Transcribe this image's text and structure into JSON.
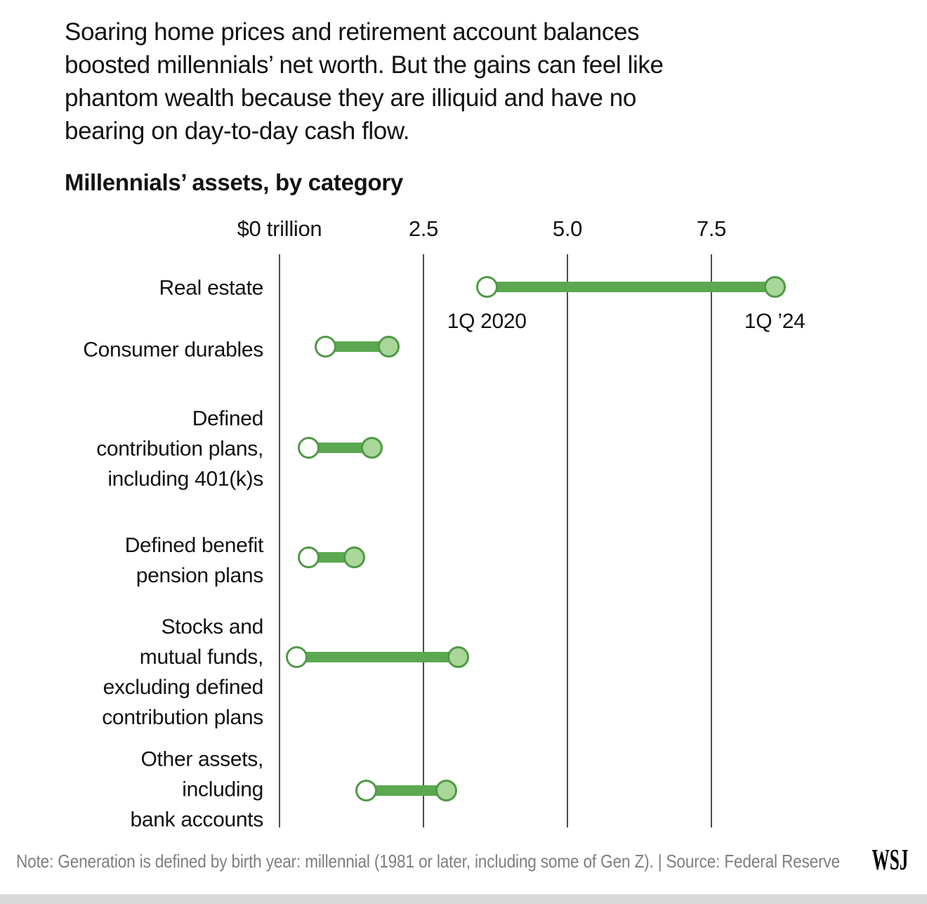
{
  "page": {
    "background": "#ffffff",
    "text_color": "#121212",
    "note_color": "#7f7f7f",
    "divider_color": "#d9d9d9"
  },
  "intro": {
    "lines": [
      "Soaring home prices and retirement account balances",
      "boosted millennials’ net worth. But the gains can feel like",
      "phantom wealth because they are illiquid and have no",
      "bearing on day-to-day cash flow."
    ]
  },
  "chart_data": {
    "type": "dumbbell",
    "title": "Millennials’ assets, by category",
    "unit": "trillions of U.S. dollars",
    "x_axis": {
      "tick_values": [
        0,
        2.5,
        5.0,
        7.5
      ],
      "tick_labels": [
        "$0 trillion",
        "2.5",
        "5.0",
        "7.5"
      ],
      "range": [
        0,
        9.3
      ],
      "grid": true
    },
    "point_labels": {
      "start": "1Q 2020",
      "end": "1Q ’24"
    },
    "categories": [
      "Real estate",
      "Consumer durables",
      "Defined\ncontribution plans,\nincluding 401(k)s",
      "Defined benefit\npension plans",
      "Stocks and\nmutual funds,\nexcluding defined\ncontribution plans",
      "Other assets,\nincluding\nbank accounts"
    ],
    "series": [
      {
        "name": "1Q 2020",
        "values": [
          3.6,
          0.8,
          0.5,
          0.5,
          0.3,
          1.5
        ]
      },
      {
        "name": "1Q ’24",
        "values": [
          8.6,
          1.9,
          1.6,
          1.3,
          3.1,
          2.9
        ]
      }
    ],
    "legend_position": "inline-on-first-row",
    "colors": {
      "line": "#5ca851",
      "marker_border": "#4f9a44",
      "end_fill": "#a9d699",
      "start_fill": "#ffffff"
    }
  },
  "footer": {
    "note": "Note: Generation is defined by birth year: millennial (1981 or later, including some of Gen Z). | Source: Federal Reserve",
    "logo": "WSJ"
  }
}
